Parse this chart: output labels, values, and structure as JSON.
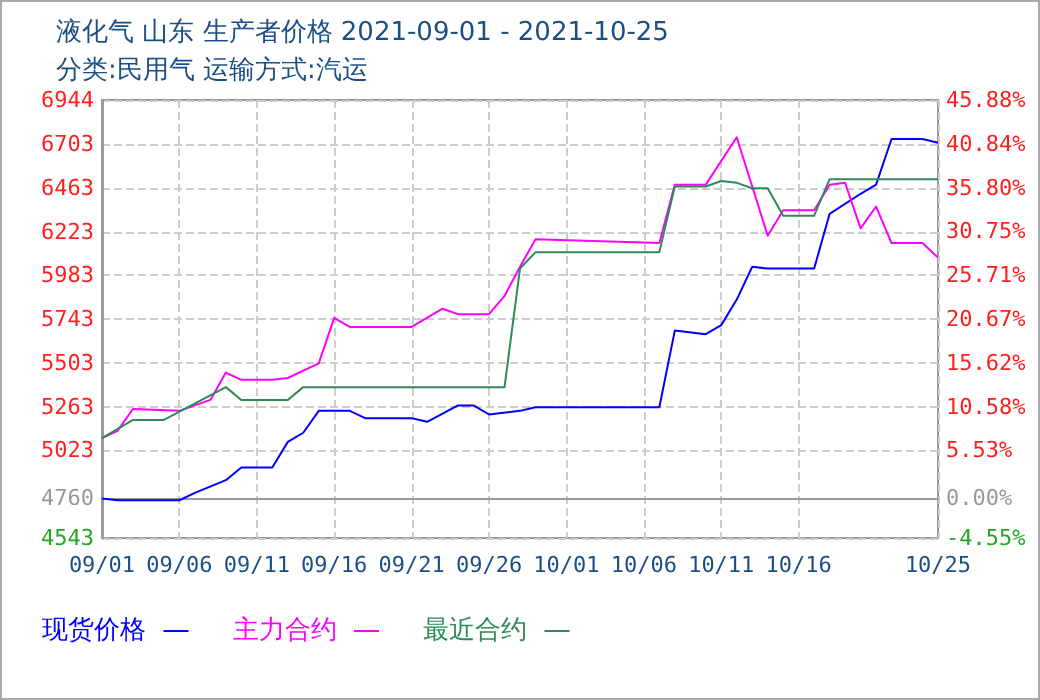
{
  "chart_data": {
    "type": "line",
    "title": "液化气 山东 生产者价格 2021-09-01 - 2021-10-25",
    "subtitle": "分类:民用气 运输方式:汽运",
    "xlim": [
      "2021-09-01",
      "2021-10-25"
    ],
    "xticks": [
      {
        "value": "2021-09-01",
        "label": "09/01"
      },
      {
        "value": "2021-09-06",
        "label": "09/06"
      },
      {
        "value": "2021-09-11",
        "label": "09/11"
      },
      {
        "value": "2021-09-16",
        "label": "09/16"
      },
      {
        "value": "2021-09-21",
        "label": "09/21"
      },
      {
        "value": "2021-09-26",
        "label": "09/26"
      },
      {
        "value": "2021-10-01",
        "label": "10/01"
      },
      {
        "value": "2021-10-06",
        "label": "10/06"
      },
      {
        "value": "2021-10-11",
        "label": "10/11"
      },
      {
        "value": "2021-10-16",
        "label": "10/16"
      },
      {
        "value": "2021-10-25",
        "label": "10/25"
      }
    ],
    "ylim": [
      4543,
      6944
    ],
    "yticks": [
      4543,
      4760,
      5023,
      5263,
      5503,
      5743,
      5983,
      6223,
      6463,
      6703,
      6944
    ],
    "y2lim": [
      -4.55,
      45.88
    ],
    "y2ticks": [
      {
        "value": -4.55,
        "label": "-4.55%"
      },
      {
        "value": 0,
        "label": "0.00%"
      },
      {
        "value": 5.53,
        "label": "5.53%"
      },
      {
        "value": 10.58,
        "label": "10.58%"
      },
      {
        "value": 15.62,
        "label": "15.62%"
      },
      {
        "value": 20.67,
        "label": "20.67%"
      },
      {
        "value": 25.71,
        "label": "25.71%"
      },
      {
        "value": 30.75,
        "label": "30.75%"
      },
      {
        "value": 35.8,
        "label": "35.80%"
      },
      {
        "value": 40.84,
        "label": "40.84%"
      },
      {
        "value": 45.88,
        "label": "45.88%"
      }
    ],
    "grid": true,
    "legend": "bottom",
    "series": [
      {
        "name": "现货价格",
        "color": "#0000ff",
        "x": [
          "2021-09-01",
          "2021-09-02",
          "2021-09-06",
          "2021-09-07",
          "2021-09-09",
          "2021-09-10",
          "2021-09-12",
          "2021-09-13",
          "2021-09-14",
          "2021-09-15",
          "2021-09-17",
          "2021-09-18",
          "2021-09-21",
          "2021-09-22",
          "2021-09-24",
          "2021-09-25",
          "2021-09-26",
          "2021-09-28",
          "2021-09-29",
          "2021-10-07",
          "2021-10-08",
          "2021-10-10",
          "2021-10-11",
          "2021-10-12",
          "2021-10-13",
          "2021-10-14",
          "2021-10-17",
          "2021-10-18",
          "2021-10-20",
          "2021-10-21",
          "2021-10-22",
          "2021-10-24",
          "2021-10-25"
        ],
        "values": [
          4760,
          4750,
          4750,
          4790,
          4860,
          4930,
          4930,
          5070,
          5120,
          5240,
          5240,
          5200,
          5200,
          5180,
          5270,
          5270,
          5220,
          5240,
          5260,
          5260,
          5680,
          5660,
          5710,
          5850,
          6030,
          6020,
          6020,
          6320,
          6430,
          6480,
          6730,
          6730,
          6710
        ]
      },
      {
        "name": "主力合约",
        "color": "#ff00ff",
        "x": [
          "2021-09-01",
          "2021-09-02",
          "2021-09-03",
          "2021-09-06",
          "2021-09-08",
          "2021-09-09",
          "2021-09-10",
          "2021-09-12",
          "2021-09-13",
          "2021-09-15",
          "2021-09-16",
          "2021-09-17",
          "2021-09-21",
          "2021-09-23",
          "2021-09-24",
          "2021-09-26",
          "2021-09-27",
          "2021-09-28",
          "2021-09-29",
          "2021-10-07",
          "2021-10-08",
          "2021-10-10",
          "2021-10-12",
          "2021-10-14",
          "2021-10-15",
          "2021-10-17",
          "2021-10-18",
          "2021-10-19",
          "2021-10-20",
          "2021-10-21",
          "2021-10-22",
          "2021-10-24",
          "2021-10-25"
        ],
        "values": [
          5090,
          5130,
          5250,
          5240,
          5300,
          5450,
          5410,
          5410,
          5420,
          5500,
          5750,
          5700,
          5700,
          5800,
          5770,
          5770,
          5870,
          6030,
          6180,
          6160,
          6480,
          6480,
          6740,
          6200,
          6340,
          6340,
          6480,
          6490,
          6240,
          6360,
          6160,
          6160,
          6080
        ]
      },
      {
        "name": "最近合约",
        "color": "#2e8b57",
        "x": [
          "2021-09-01",
          "2021-09-03",
          "2021-09-05",
          "2021-09-09",
          "2021-09-10",
          "2021-09-13",
          "2021-09-14",
          "2021-09-27",
          "2021-09-28",
          "2021-09-29",
          "2021-10-07",
          "2021-10-08",
          "2021-10-10",
          "2021-10-11",
          "2021-10-12",
          "2021-10-13",
          "2021-10-14",
          "2021-10-15",
          "2021-10-17",
          "2021-10-18",
          "2021-10-25"
        ],
        "values": [
          5090,
          5190,
          5190,
          5370,
          5300,
          5300,
          5370,
          5370,
          6020,
          6110,
          6110,
          6470,
          6470,
          6500,
          6490,
          6460,
          6460,
          6310,
          6310,
          6510,
          6510
        ]
      }
    ]
  }
}
